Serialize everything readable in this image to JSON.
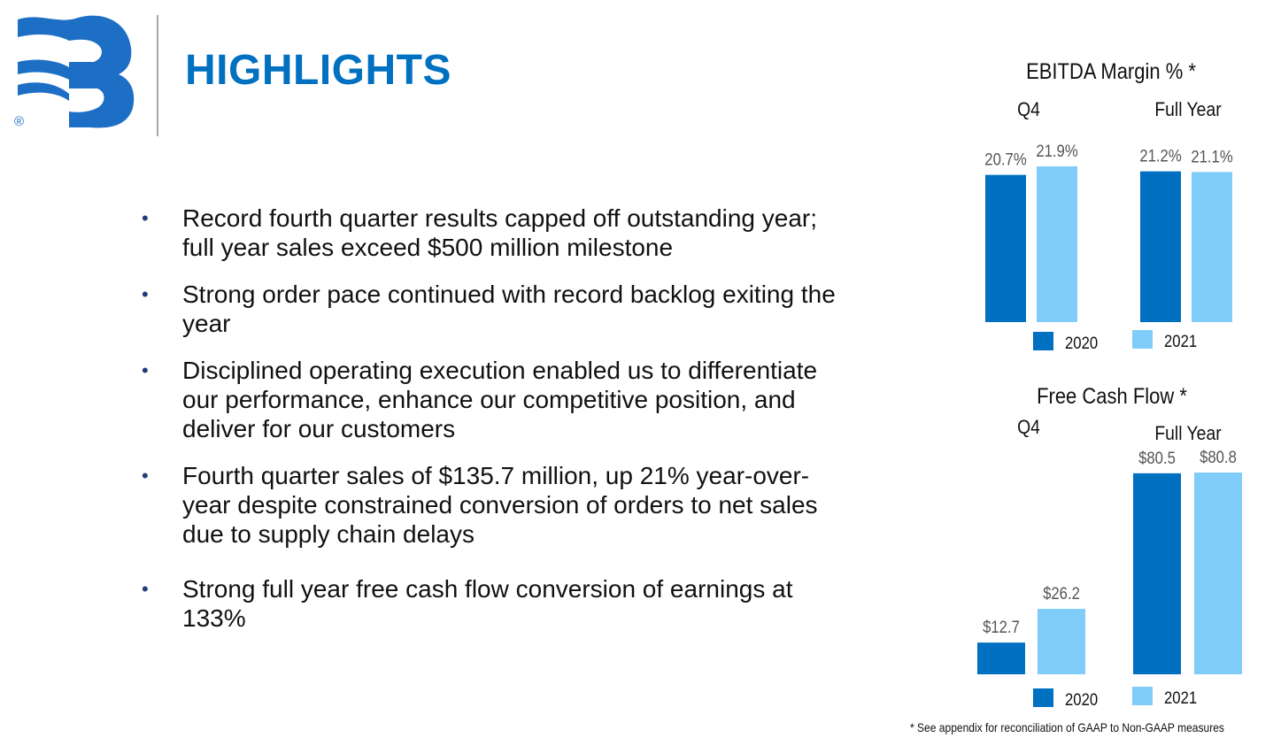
{
  "header": {
    "title": "HIGHLIGHTS",
    "registered_mark": "®"
  },
  "bullets": [
    {
      "text": "Record fourth quarter results capped off outstanding year; full year sales exceed $500 million milestone"
    },
    {
      "text": "Strong order pace continued with record backlog exiting the year"
    },
    {
      "text": "Disciplined operating execution enabled us to differentiate our performance, enhance our competitive position, and deliver for our customers"
    },
    {
      "text": "Fourth quarter sales of $135.7 million, up 21% year-over-year despite constrained conversion of orders to net sales due to supply chain delays"
    },
    {
      "text": "Strong full year free cash flow conversion of earnings at 133%"
    }
  ],
  "colors": {
    "accent": "#0070c0",
    "series_2020": "#0070c0",
    "series_2021": "#7fccf8",
    "text": "#111111",
    "label": "#555555"
  },
  "chart_data": [
    {
      "type": "bar",
      "title": "EBITDA Margin % *",
      "categories": [
        "Q4",
        "Full Year"
      ],
      "series": [
        {
          "name": "2020",
          "values": [
            20.7,
            21.2
          ],
          "labels": [
            "20.7%",
            "21.2%"
          ]
        },
        {
          "name": "2021",
          "values": [
            21.9,
            21.1
          ],
          "labels": [
            "21.9%",
            "21.1%"
          ]
        }
      ],
      "ylim": [
        0,
        21.9
      ],
      "grid": false,
      "legend": "bottom"
    },
    {
      "type": "bar",
      "title": "Free Cash Flow *",
      "categories": [
        "Q4",
        "Full Year"
      ],
      "series": [
        {
          "name": "2020",
          "values": [
            12.7,
            80.5
          ],
          "labels": [
            "$12.7",
            "$80.5"
          ]
        },
        {
          "name": "2021",
          "values": [
            26.2,
            80.8
          ],
          "labels": [
            "$26.2",
            "$80.8"
          ]
        }
      ],
      "grid": false,
      "legend": "bottom"
    }
  ],
  "footnote": "* See appendix for reconciliation of GAAP to Non-GAAP measures"
}
